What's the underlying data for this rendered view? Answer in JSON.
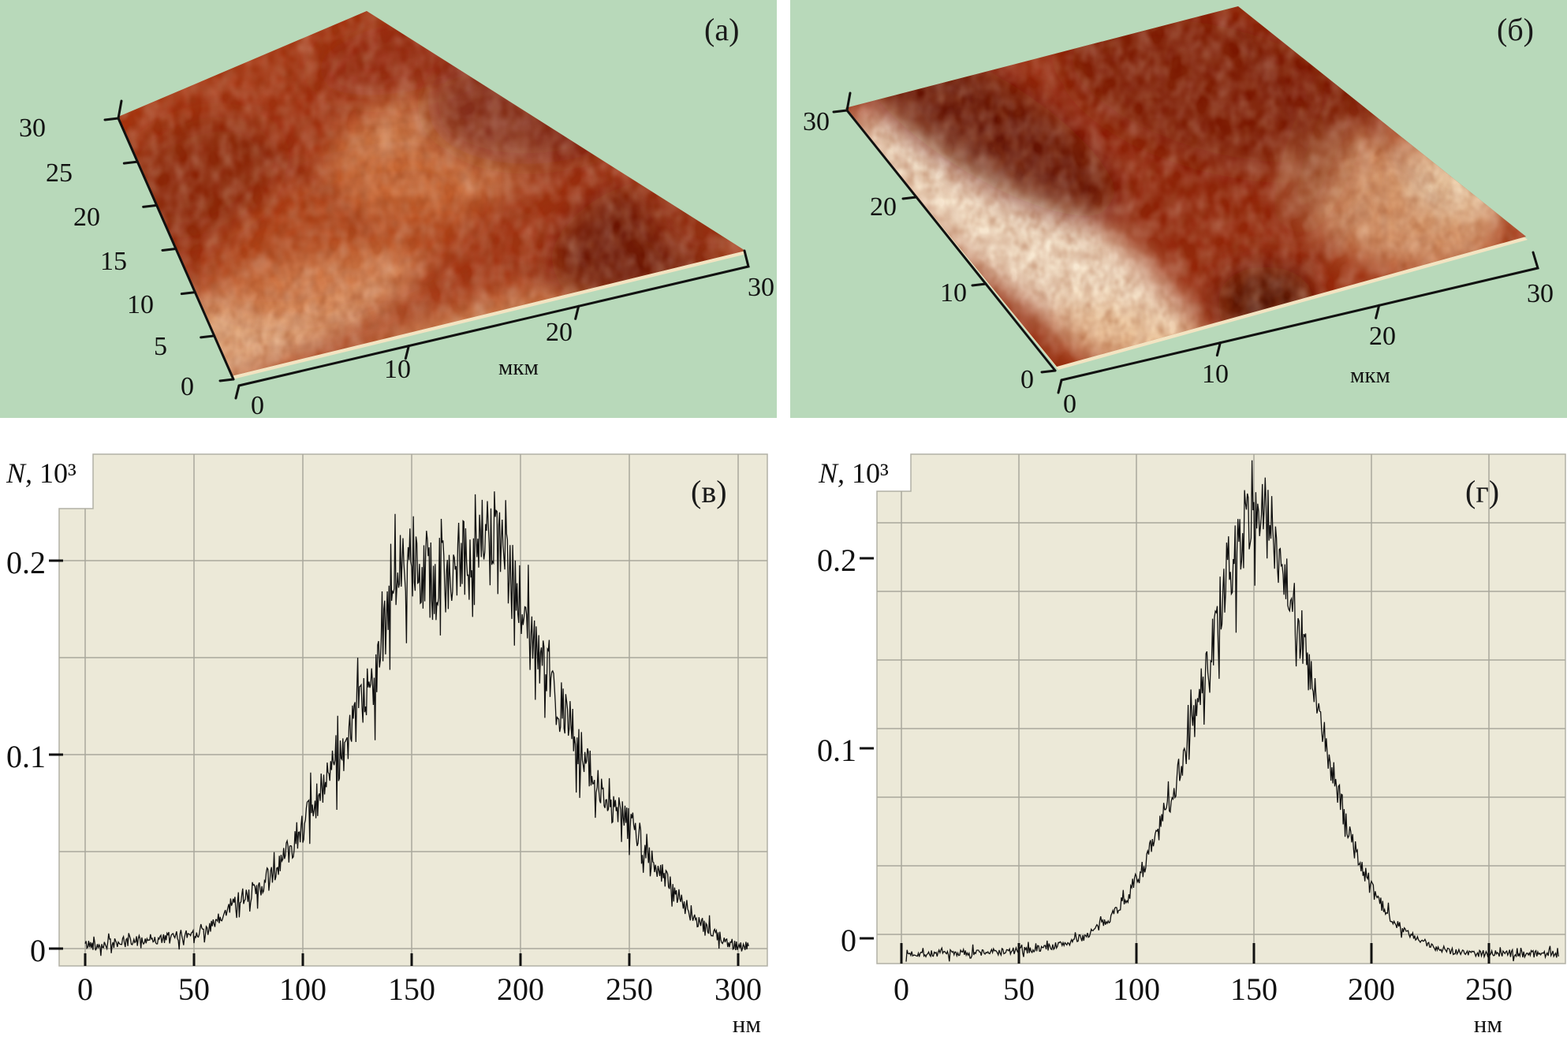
{
  "colors": {
    "page_bg": "#ffffff",
    "panel_green": "#b8d9ba",
    "chart_bg": "#ece9d8",
    "grid": "#a9a89c",
    "trace": "#101010",
    "axis": "#111111"
  },
  "panels_3d": [
    {
      "id": "a",
      "label": "(а)",
      "left_ticks": [
        "30",
        "25",
        "20",
        "15",
        "10",
        "5",
        "0"
      ],
      "bottom_ticks": [
        "0",
        "10",
        "20",
        "30"
      ],
      "unit": "мкм",
      "axis_range_um": [
        0,
        30
      ]
    },
    {
      "id": "b",
      "label": "(б)",
      "left_ticks": [
        "30",
        "20",
        "10",
        "0"
      ],
      "bottom_ticks": [
        "0",
        "10",
        "20",
        "30"
      ],
      "unit": "мкм",
      "axis_range_um": [
        0,
        30
      ]
    }
  ],
  "charts": [
    {
      "id": "v",
      "label": "(в)",
      "ylabel_main": "N,",
      "ylabel_scale": "10³",
      "xunit": "нм",
      "ytick_labels": [
        "0.2",
        "0.1",
        "0"
      ],
      "xtick_labels": [
        "0",
        "50",
        "100",
        "150",
        "200",
        "250",
        "300"
      ]
    },
    {
      "id": "g",
      "label": "(г)",
      "ylabel_main": "N,",
      "ylabel_scale": "10³",
      "xunit": "нм",
      "ytick_labels": [
        "0.2",
        "0.1",
        "0"
      ],
      "xtick_labels": [
        "0",
        "50",
        "100",
        "150",
        "200",
        "250"
      ]
    }
  ],
  "chart_data": [
    {
      "panel": "(в)",
      "type": "line",
      "title": "surface height distribution histogram",
      "xlabel": "нм",
      "ylabel": "N, 10³",
      "xlim": [
        -12,
        313
      ],
      "ylim": [
        -0.009,
        0.255
      ],
      "xticks": [
        0,
        50,
        100,
        150,
        200,
        250,
        300
      ],
      "yticks": [
        0,
        0.1,
        0.2
      ],
      "ygrid_values": [
        0,
        0.05,
        0.1,
        0.15,
        0.2
      ],
      "grid": true,
      "legend": false,
      "shape": "double peak: maxima ~0.21 at 147 нм and ~0.22 at 186 нм, dip ~0.19 at 165 нм, shoulder ~0.03 at 70-80 нм, tail bump ~0.065 at 245-255 нм, zero beyond 300 нм",
      "envelope_points": [
        [
          0,
          0.002
        ],
        [
          8,
          0.002
        ],
        [
          15,
          0.003
        ],
        [
          22,
          0.004
        ],
        [
          30,
          0.005
        ],
        [
          38,
          0.005
        ],
        [
          45,
          0.007
        ],
        [
          52,
          0.009
        ],
        [
          58,
          0.011
        ],
        [
          63,
          0.016
        ],
        [
          68,
          0.024
        ],
        [
          74,
          0.028
        ],
        [
          80,
          0.03
        ],
        [
          86,
          0.038
        ],
        [
          92,
          0.048
        ],
        [
          98,
          0.06
        ],
        [
          104,
          0.07
        ],
        [
          110,
          0.082
        ],
        [
          116,
          0.097
        ],
        [
          122,
          0.11
        ],
        [
          128,
          0.126
        ],
        [
          134,
          0.148
        ],
        [
          139,
          0.168
        ],
        [
          143,
          0.19
        ],
        [
          147,
          0.205
        ],
        [
          151,
          0.207
        ],
        [
          155,
          0.197
        ],
        [
          160,
          0.19
        ],
        [
          165,
          0.191
        ],
        [
          169,
          0.198
        ],
        [
          172,
          0.203
        ],
        [
          176,
          0.199
        ],
        [
          180,
          0.204
        ],
        [
          184,
          0.212
        ],
        [
          187,
          0.216
        ],
        [
          190,
          0.208
        ],
        [
          194,
          0.196
        ],
        [
          198,
          0.183
        ],
        [
          202,
          0.17
        ],
        [
          207,
          0.155
        ],
        [
          212,
          0.14
        ],
        [
          217,
          0.128
        ],
        [
          222,
          0.117
        ],
        [
          227,
          0.103
        ],
        [
          232,
          0.091
        ],
        [
          237,
          0.081
        ],
        [
          242,
          0.073
        ],
        [
          247,
          0.068
        ],
        [
          252,
          0.062
        ],
        [
          256,
          0.056
        ],
        [
          260,
          0.048
        ],
        [
          264,
          0.04
        ],
        [
          268,
          0.033
        ],
        [
          272,
          0.027
        ],
        [
          276,
          0.021
        ],
        [
          281,
          0.015
        ],
        [
          286,
          0.01
        ],
        [
          291,
          0.006
        ],
        [
          296,
          0.003
        ],
        [
          301,
          0.001
        ],
        [
          305,
          0.001
        ]
      ],
      "noise": {
        "base": 0.0025,
        "scale": 0.1,
        "spike_p": 0.13,
        "spike_mul": 2.3,
        "seed": 42,
        "step_nm": 0.4
      }
    },
    {
      "panel": "(г)",
      "type": "line",
      "title": "surface height distribution histogram",
      "xlabel": "нм",
      "ylabel": "N, 10³",
      "xlim": [
        -15,
        283
      ],
      "ylim": [
        -0.012,
        0.255
      ],
      "xticks": [
        0,
        50,
        100,
        150,
        200,
        250
      ],
      "yticks": [
        0,
        0.1,
        0.2
      ],
      "ygrid_spacing_note": "horizontal gridlines not aligned with ticks",
      "grid": true,
      "legend": false,
      "shape": "single near-gaussian peak ~0.23 centred at ~146 нм, width ~±45 нм, baseline slightly below 0",
      "envelope_points": [
        [
          2,
          -0.008
        ],
        [
          15,
          -0.008
        ],
        [
          30,
          -0.0075
        ],
        [
          45,
          -0.007
        ],
        [
          55,
          -0.006
        ],
        [
          65,
          -0.004
        ],
        [
          72,
          -0.002
        ],
        [
          78,
          0.001
        ],
        [
          84,
          0.006
        ],
        [
          90,
          0.013
        ],
        [
          96,
          0.022
        ],
        [
          102,
          0.035
        ],
        [
          108,
          0.052
        ],
        [
          114,
          0.072
        ],
        [
          120,
          0.095
        ],
        [
          126,
          0.122
        ],
        [
          131,
          0.148
        ],
        [
          136,
          0.172
        ],
        [
          140,
          0.192
        ],
        [
          144,
          0.21
        ],
        [
          148,
          0.222
        ],
        [
          152,
          0.226
        ],
        [
          156,
          0.22
        ],
        [
          160,
          0.207
        ],
        [
          164,
          0.19
        ],
        [
          168,
          0.17
        ],
        [
          172,
          0.148
        ],
        [
          176,
          0.126
        ],
        [
          180,
          0.104
        ],
        [
          184,
          0.084
        ],
        [
          188,
          0.066
        ],
        [
          192,
          0.05
        ],
        [
          196,
          0.037
        ],
        [
          200,
          0.026
        ],
        [
          205,
          0.016
        ],
        [
          210,
          0.009
        ],
        [
          215,
          0.003
        ],
        [
          220,
          -0.001
        ],
        [
          226,
          -0.004
        ],
        [
          232,
          -0.006
        ],
        [
          240,
          -0.0075
        ],
        [
          250,
          -0.008
        ],
        [
          265,
          -0.008
        ],
        [
          280,
          -0.008
        ]
      ],
      "noise": {
        "base": 0.002,
        "scale": 0.085,
        "spike_p": 0.12,
        "spike_mul": 2.2,
        "seed": 7,
        "step_nm": 0.4
      }
    }
  ]
}
